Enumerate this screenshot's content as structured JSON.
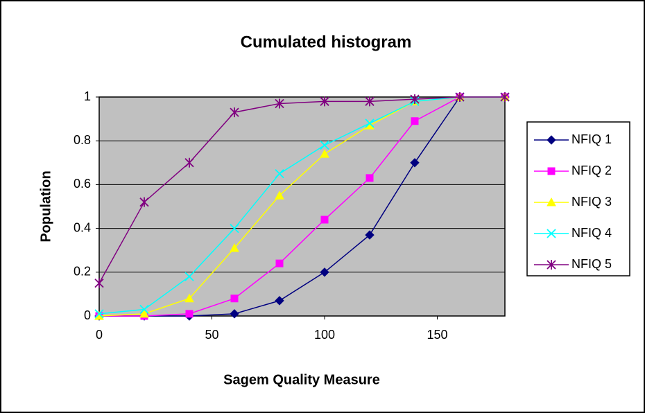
{
  "chart_data": {
    "type": "line",
    "title": "Cumulated histogram",
    "x_label": "Sagem Quality Measure",
    "y_label": "Population",
    "x": [
      0,
      20,
      40,
      60,
      80,
      100,
      120,
      140,
      160,
      180
    ],
    "series": [
      {
        "name": "NFIQ 1",
        "color": "#000080",
        "marker": "diamond",
        "values": [
          0,
          0,
          0,
          0.01,
          0.07,
          0.2,
          0.37,
          0.7,
          1,
          1
        ]
      },
      {
        "name": "NFIQ 2",
        "color": "#ff00ff",
        "marker": "square",
        "values": [
          0,
          0,
          0.01,
          0.08,
          0.24,
          0.44,
          0.63,
          0.89,
          1,
          1
        ]
      },
      {
        "name": "NFIQ 3",
        "color": "#ffff00",
        "marker": "triangle",
        "values": [
          0,
          0.01,
          0.08,
          0.31,
          0.55,
          0.74,
          0.87,
          0.98,
          1,
          1
        ]
      },
      {
        "name": "NFIQ 4",
        "color": "#00ffff",
        "marker": "x",
        "values": [
          0.01,
          0.03,
          0.18,
          0.4,
          0.65,
          0.78,
          0.88,
          0.98,
          1,
          1
        ]
      },
      {
        "name": "NFIQ 5",
        "color": "#800080",
        "marker": "star",
        "values": [
          0.15,
          0.52,
          0.7,
          0.93,
          0.97,
          0.98,
          0.98,
          0.99,
          1,
          1
        ]
      }
    ],
    "xlim": [
      0,
      180
    ],
    "xticks": [
      0,
      50,
      100,
      150
    ],
    "ylim": [
      0,
      1
    ],
    "yticks": [
      0,
      0.2,
      0.4,
      0.6,
      0.8,
      1
    ],
    "grid": true,
    "legend": "right",
    "plot_background": "#c0c0c0"
  }
}
